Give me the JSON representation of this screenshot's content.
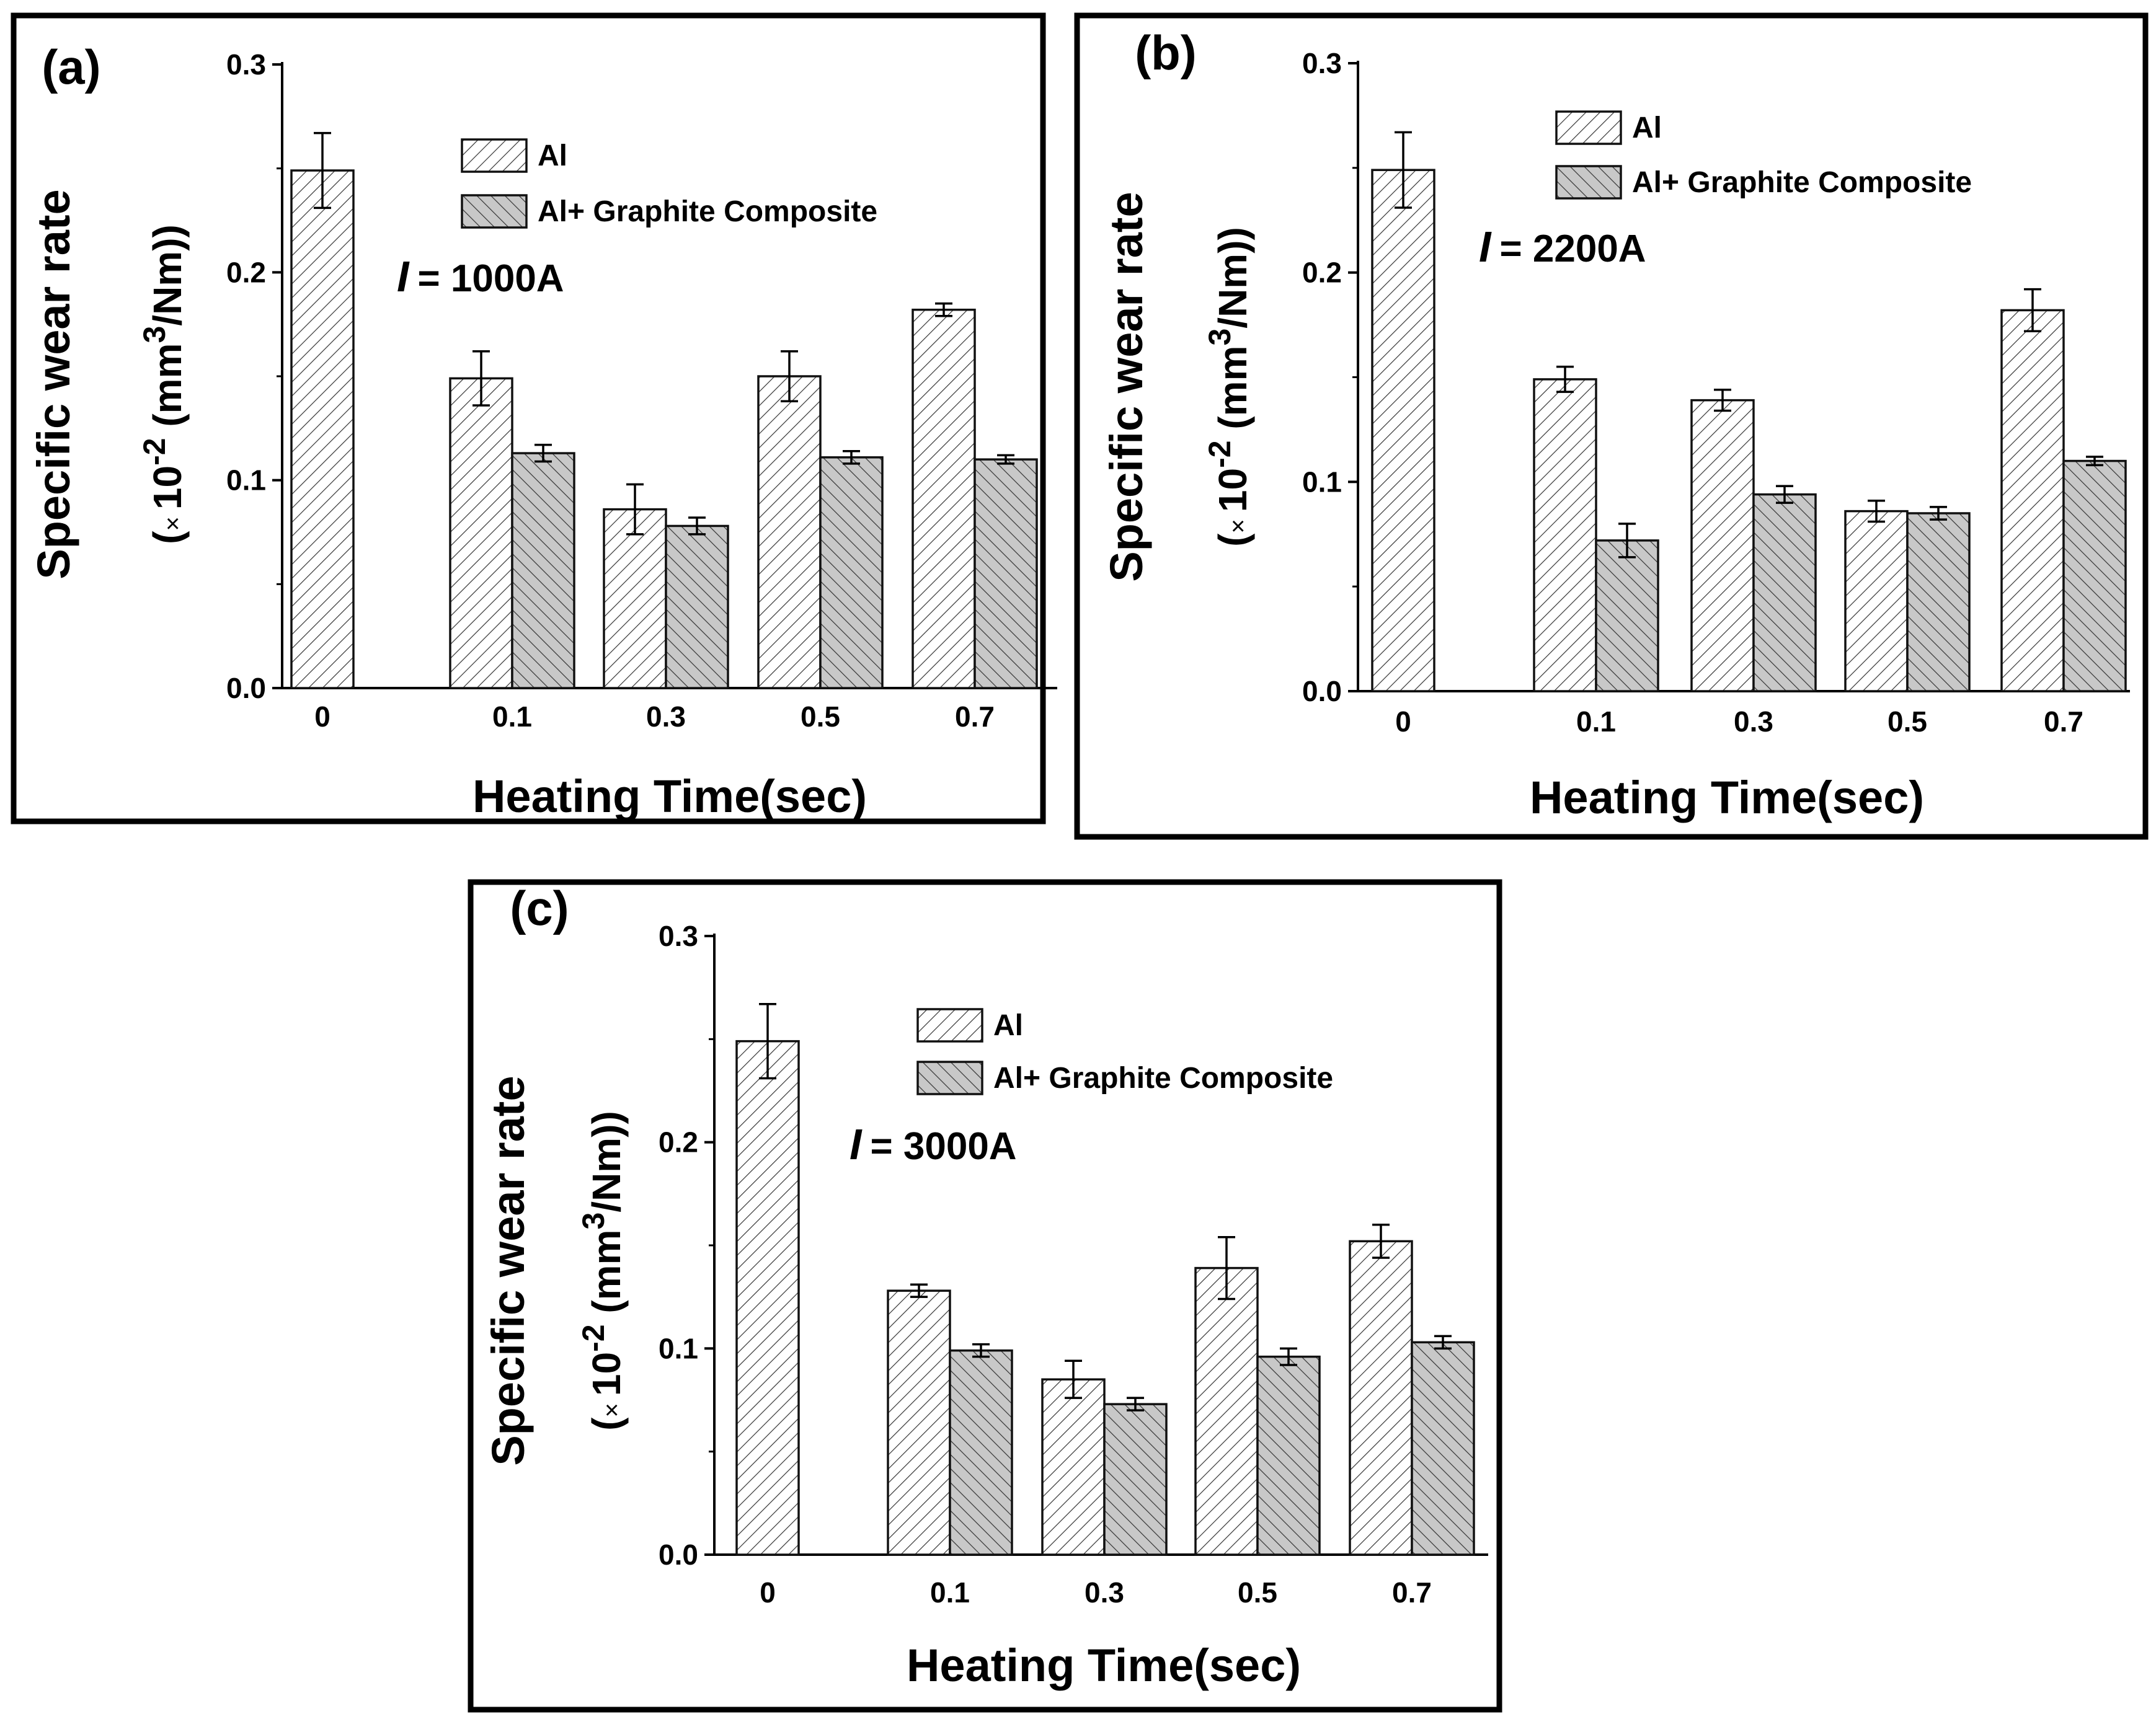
{
  "figure": {
    "legend_series": [
      "Al",
      "Al+ Graphite Composite"
    ],
    "current_prefix": "I",
    "times_symbol": "×",
    "ylabel_exponent": "-2",
    "ylabel_cube": "3",
    "ylabel_unit_tail": "/Nm))",
    "ylabel_multiplier_prefix": "(",
    "ylabel_multiplier_base": "10",
    "ylabel_unit_head": " (mm"
  },
  "chart_data": [
    {
      "panel": "(a)",
      "type": "bar",
      "title": "",
      "xlabel": "Heating Time(sec)",
      "ylabel": "Specific wear rate",
      "current_label": "= 1000A",
      "categories": [
        "0",
        "0.1",
        "0.3",
        "0.5",
        "0.7"
      ],
      "yticks": [
        "0.0",
        "0.1",
        "0.2",
        "0.3"
      ],
      "ylim": [
        0,
        0.3
      ],
      "grid": false,
      "legend_position": "top-right",
      "series": [
        {
          "name": "Al",
          "values": [
            0.249,
            0.149,
            0.086,
            0.15,
            0.182
          ],
          "errors": [
            0.018,
            0.013,
            0.012,
            0.012,
            0.003
          ]
        },
        {
          "name": "Al+ Graphite Composite",
          "values": [
            null,
            0.113,
            0.078,
            0.111,
            0.11
          ],
          "errors": [
            null,
            0.004,
            0.004,
            0.003,
            0.002
          ]
        }
      ]
    },
    {
      "panel": "(b)",
      "type": "bar",
      "title": "",
      "xlabel": "Heating Time(sec)",
      "ylabel": "Specific wear rate",
      "current_label": "= 2200A",
      "categories": [
        "0",
        "0.1",
        "0.3",
        "0.5",
        "0.7"
      ],
      "yticks": [
        "0.0",
        "0.1",
        "0.2",
        "0.3"
      ],
      "ylim": [
        0,
        0.3
      ],
      "grid": false,
      "legend_position": "top-right",
      "series": [
        {
          "name": "Al",
          "values": [
            0.249,
            0.149,
            0.139,
            0.086,
            0.182
          ],
          "errors": [
            0.018,
            0.006,
            0.005,
            0.005,
            0.01
          ]
        },
        {
          "name": "Al+ Graphite Composite",
          "values": [
            null,
            0.072,
            0.094,
            0.085,
            0.11
          ],
          "errors": [
            null,
            0.008,
            0.004,
            0.003,
            0.002
          ]
        }
      ]
    },
    {
      "panel": "(c)",
      "type": "bar",
      "title": "",
      "xlabel": "Heating Time(sec)",
      "ylabel": "Specific wear rate",
      "current_label": "= 3000A",
      "categories": [
        "0",
        "0.1",
        "0.3",
        "0.5",
        "0.7"
      ],
      "yticks": [
        "0.0",
        "0.1",
        "0.2",
        "0.3"
      ],
      "ylim": [
        0,
        0.3
      ],
      "grid": false,
      "legend_position": "top-right",
      "series": [
        {
          "name": "Al",
          "values": [
            0.249,
            0.128,
            0.085,
            0.139,
            0.152
          ],
          "errors": [
            0.018,
            0.003,
            0.009,
            0.015,
            0.008
          ]
        },
        {
          "name": "Al+ Graphite Composite",
          "values": [
            null,
            0.099,
            0.073,
            0.096,
            0.103
          ],
          "errors": [
            null,
            0.003,
            0.003,
            0.004,
            0.003
          ]
        }
      ]
    }
  ]
}
